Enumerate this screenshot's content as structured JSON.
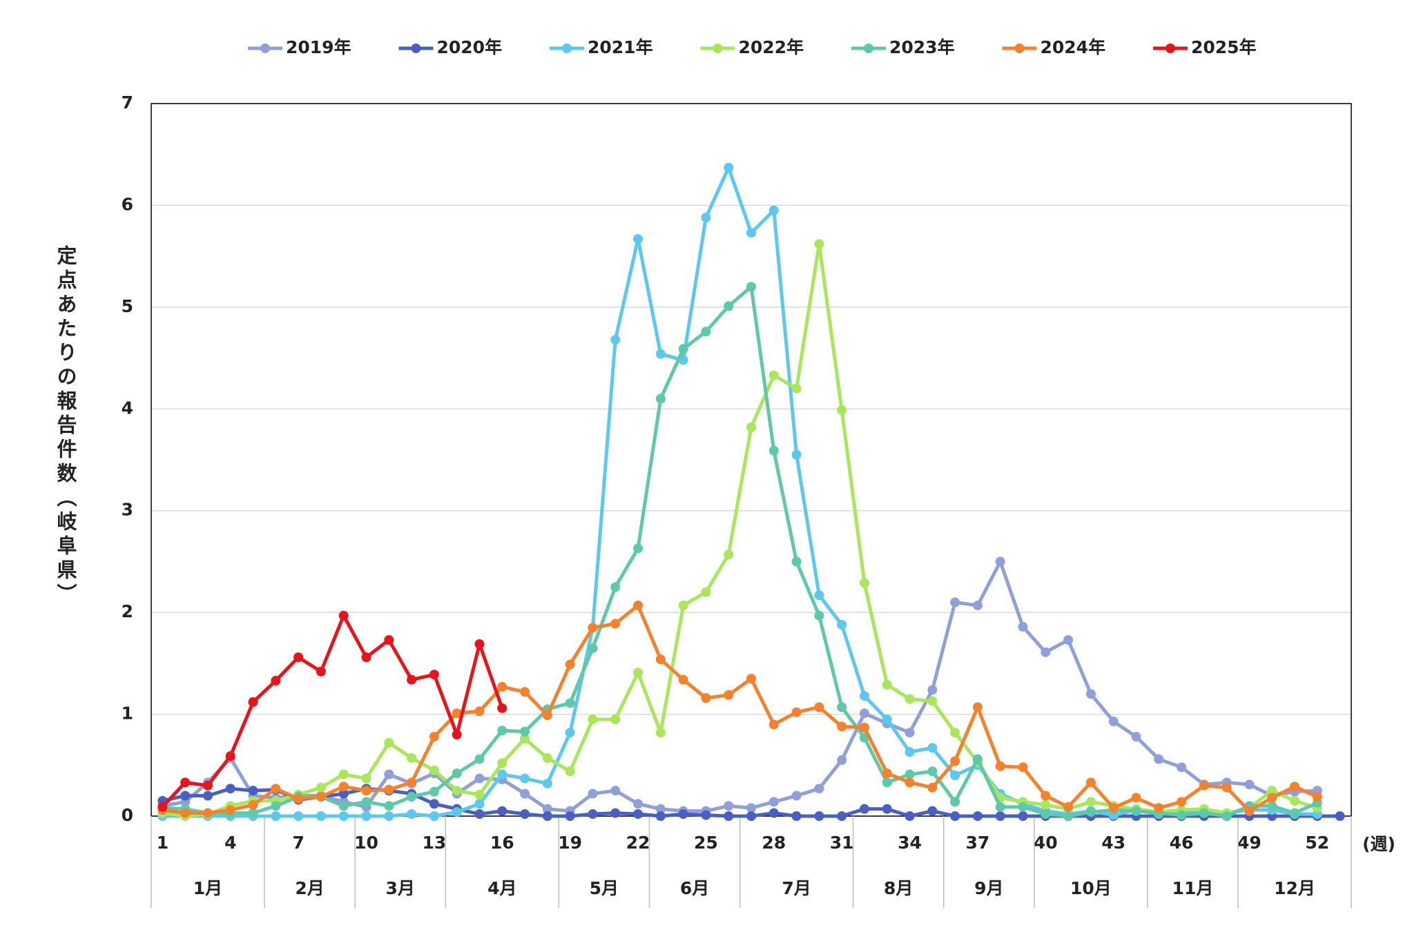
{
  "chart_data": {
    "type": "line",
    "y_label": "定点あたりの報告件数（岐阜県）",
    "x_unit": "(週)",
    "categories": [
      1,
      null,
      null,
      4,
      null,
      null,
      7,
      null,
      null,
      10,
      null,
      null,
      13,
      null,
      null,
      16,
      null,
      null,
      19,
      null,
      null,
      22,
      null,
      null,
      25,
      null,
      null,
      28,
      null,
      null,
      31,
      null,
      null,
      34,
      null,
      null,
      37,
      null,
      null,
      40,
      null,
      null,
      43,
      null,
      null,
      46,
      null,
      null,
      49,
      null,
      null,
      52,
      null
    ],
    "month_groups": [
      {
        "label": "1月",
        "span": 5
      },
      {
        "label": "2月",
        "span": 4
      },
      {
        "label": "3月",
        "span": 4
      },
      {
        "label": "4月",
        "span": 5
      },
      {
        "label": "5月",
        "span": 4
      },
      {
        "label": "6月",
        "span": 4
      },
      {
        "label": "7月",
        "span": 5
      },
      {
        "label": "8月",
        "span": 4
      },
      {
        "label": "9月",
        "span": 4
      },
      {
        "label": "10月",
        "span": 5
      },
      {
        "label": "11月",
        "span": 4
      },
      {
        "label": "12月",
        "span": 5
      }
    ],
    "ylim": [
      0,
      7
    ],
    "yticks": [
      0,
      1,
      2,
      3,
      4,
      5,
      6,
      7
    ],
    "grid": true,
    "legend": "top",
    "series": [
      {
        "name": "2019年",
        "color": "#8f9fd9",
        "values": [
          0.1,
          0.14,
          0.33,
          0.57,
          0.2,
          0.18,
          0.2,
          0.2,
          0.14,
          0.09,
          0.41,
          0.32,
          0.42,
          0.22,
          0.37,
          0.36,
          0.22,
          0.07,
          0.05,
          0.22,
          0.25,
          0.12,
          0.07,
          0.05,
          0.05,
          0.1,
          0.08,
          0.14,
          0.2,
          0.27,
          0.55,
          1.01,
          0.91,
          0.82,
          1.24,
          2.1,
          2.07,
          2.5,
          1.86,
          1.61,
          1.73,
          1.2,
          0.93,
          0.78,
          0.56,
          0.48,
          0.31,
          0.33,
          0.31,
          0.2,
          0.24,
          0.25,
          null
        ]
      },
      {
        "name": "2020年",
        "color": "#4a5fc4",
        "values": [
          0.15,
          0.2,
          0.2,
          0.27,
          0.25,
          0.26,
          0.16,
          0.19,
          0.22,
          0.27,
          0.25,
          0.22,
          0.12,
          0.07,
          0.02,
          0.05,
          0.02,
          0,
          0,
          0.02,
          0.03,
          0.02,
          0,
          0.02,
          0.01,
          0,
          0,
          0.03,
          0,
          0,
          0,
          0.07,
          0.07,
          0,
          0.05,
          0,
          0,
          0,
          0,
          0,
          0,
          0,
          0,
          0,
          0,
          0,
          0,
          0,
          0,
          0,
          0,
          0,
          0
        ]
      },
      {
        "name": "2021年",
        "color": "#5bc8ef",
        "values": [
          0,
          0,
          0,
          0,
          0,
          0,
          0,
          0,
          0,
          0,
          0,
          0.02,
          0,
          0.04,
          0.12,
          0.41,
          0.37,
          0.32,
          0.82,
          1.85,
          4.68,
          5.67,
          4.54,
          4.48,
          5.88,
          6.37,
          5.73,
          5.95,
          3.55,
          2.17,
          1.88,
          1.18,
          0.95,
          0.63,
          0.67,
          0.4,
          0.5,
          0.22,
          0.12,
          0.05,
          0.02,
          0.05,
          0.01,
          0.06,
          0.02,
          0.04,
          0.05,
          0.03,
          0.06,
          0.06,
          0.02,
          0.02,
          null
        ]
      },
      {
        "name": "2022年",
        "color": "#a8e65a",
        "values": [
          0.03,
          0,
          0.02,
          0.1,
          0.15,
          0.15,
          0.21,
          0.28,
          0.41,
          0.37,
          0.72,
          0.57,
          0.45,
          0.25,
          0.21,
          0.52,
          0.76,
          0.57,
          0.44,
          0.95,
          0.95,
          1.41,
          0.82,
          2.07,
          2.2,
          2.57,
          3.82,
          4.33,
          4.2,
          5.62,
          3.99,
          2.29,
          1.29,
          1.15,
          1.13,
          0.82,
          0.53,
          0.18,
          0.14,
          0.11,
          0.07,
          0.14,
          0.1,
          0.07,
          0.04,
          0.06,
          0.07,
          0.03,
          0.08,
          0.25,
          0.15,
          0.08,
          null
        ]
      },
      {
        "name": "2023年",
        "color": "#5cc9a7",
        "values": [
          0.08,
          0.07,
          0.03,
          0.03,
          0.03,
          0.1,
          0.19,
          0.19,
          0.1,
          0.14,
          0.1,
          0.19,
          0.24,
          0.42,
          0.56,
          0.84,
          0.83,
          1.05,
          1.11,
          1.65,
          2.25,
          2.63,
          4.1,
          4.59,
          4.76,
          5.01,
          5.2,
          3.59,
          2.5,
          1.97,
          1.07,
          0.77,
          0.33,
          0.41,
          0.44,
          0.14,
          0.56,
          0.09,
          0.09,
          0.02,
          0,
          0.04,
          0.06,
          0.05,
          0.03,
          0.01,
          0.03,
          0,
          0.1,
          0.1,
          0.03,
          0.13,
          null
        ]
      },
      {
        "name": "2024年",
        "color": "#f5822a",
        "values": [
          0.06,
          0.03,
          0.03,
          0.06,
          0.11,
          0.27,
          0.17,
          0.19,
          0.29,
          0.25,
          0.26,
          0.33,
          0.78,
          1.01,
          1.03,
          1.27,
          1.22,
          0.99,
          1.49,
          1.85,
          1.89,
          2.07,
          1.54,
          1.34,
          1.16,
          1.19,
          1.35,
          0.9,
          1.02,
          1.07,
          0.88,
          0.87,
          0.42,
          0.33,
          0.28,
          0.54,
          1.07,
          0.49,
          0.48,
          0.2,
          0.09,
          0.33,
          0.08,
          0.18,
          0.08,
          0.14,
          0.3,
          0.28,
          0.05,
          0.18,
          0.29,
          0.19,
          null
        ]
      },
      {
        "name": "2025年",
        "color": "#e8141a",
        "values": [
          0.09,
          0.33,
          0.3,
          0.59,
          1.12,
          1.33,
          1.56,
          1.42,
          1.97,
          1.56,
          1.73,
          1.34,
          1.39,
          0.8,
          1.69,
          1.06,
          null,
          null,
          null,
          null,
          null,
          null,
          null,
          null,
          null,
          null,
          null,
          null,
          null,
          null,
          null,
          null,
          null,
          null,
          null,
          null,
          null,
          null,
          null,
          null,
          null,
          null,
          null,
          null,
          null,
          null,
          null,
          null,
          null,
          null,
          null,
          null,
          null
        ]
      }
    ]
  }
}
